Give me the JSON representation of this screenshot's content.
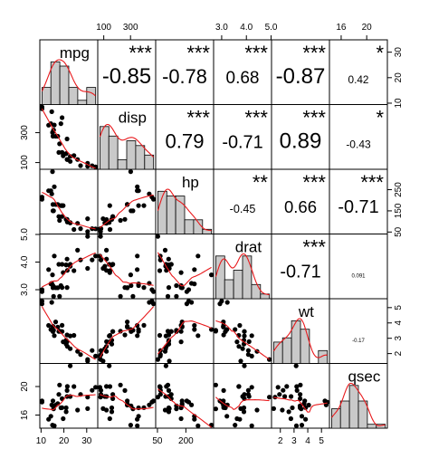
{
  "chart_data": {
    "type": "scatter-matrix",
    "title": "",
    "variables": [
      "mpg",
      "disp",
      "hp",
      "drat",
      "wt",
      "qsec"
    ],
    "axis_ranges": {
      "mpg": [
        10.4,
        33.9
      ],
      "disp": [
        71.1,
        472
      ],
      "hp": [
        52,
        335
      ],
      "drat": [
        2.76,
        4.93
      ],
      "wt": [
        1.513,
        5.424
      ],
      "qsec": [
        14.5,
        22.9
      ]
    },
    "axis_ticks": {
      "top": [
        {
          "var": "disp",
          "ticks": [
            "100",
            "300"
          ]
        },
        {
          "var": "drat",
          "ticks": [
            "3.0",
            "4.0",
            "5.0"
          ]
        },
        {
          "var": "qsec",
          "ticks": [
            "16",
            "20"
          ]
        }
      ],
      "bottom": [
        {
          "var": "mpg",
          "ticks": [
            "10",
            "20",
            "30"
          ]
        },
        {
          "var": "hp",
          "ticks": [
            "50",
            "200"
          ]
        },
        {
          "var": "wt",
          "ticks": [
            "2",
            "3",
            "4",
            "5"
          ]
        }
      ],
      "left": [
        {
          "var": "disp",
          "ticks": [
            "100",
            "300"
          ]
        },
        {
          "var": "drat",
          "ticks": [
            "3.0",
            "4.0",
            "5.0"
          ]
        },
        {
          "var": "qsec",
          "ticks": [
            "16",
            "20"
          ]
        }
      ],
      "right": [
        {
          "var": "mpg",
          "ticks": [
            "10",
            "20",
            "30"
          ]
        },
        {
          "var": "hp",
          "ticks": [
            "50",
            "150",
            "250"
          ]
        },
        {
          "var": "wt",
          "ticks": [
            "2",
            "3",
            "4",
            "5"
          ]
        }
      ]
    },
    "correlations": [
      {
        "row": 0,
        "col": 1,
        "value": "-0.85",
        "stars": "***"
      },
      {
        "row": 0,
        "col": 2,
        "value": "-0.78",
        "stars": "***"
      },
      {
        "row": 0,
        "col": 3,
        "value": "0.68",
        "stars": "***"
      },
      {
        "row": 0,
        "col": 4,
        "value": "-0.87",
        "stars": "***"
      },
      {
        "row": 0,
        "col": 5,
        "value": "0.42",
        "stars": "*"
      },
      {
        "row": 1,
        "col": 2,
        "value": "0.79",
        "stars": "***"
      },
      {
        "row": 1,
        "col": 3,
        "value": "-0.71",
        "stars": "***"
      },
      {
        "row": 1,
        "col": 4,
        "value": "0.89",
        "stars": "***"
      },
      {
        "row": 1,
        "col": 5,
        "value": "-0.43",
        "stars": "*"
      },
      {
        "row": 2,
        "col": 3,
        "value": "-0.45",
        "stars": "**"
      },
      {
        "row": 2,
        "col": 4,
        "value": "0.66",
        "stars": "***"
      },
      {
        "row": 2,
        "col": 5,
        "value": "-0.71",
        "stars": "***"
      },
      {
        "row": 3,
        "col": 4,
        "value": "-0.71",
        "stars": "***"
      },
      {
        "row": 3,
        "col": 5,
        "value": "0.091",
        "stars": ""
      },
      {
        "row": 4,
        "col": 5,
        "value": "-0.17",
        "stars": ""
      }
    ],
    "observations": {
      "mpg": [
        21,
        21,
        22.8,
        21.4,
        18.7,
        18.1,
        14.3,
        24.4,
        22.8,
        19.2,
        17.8,
        16.4,
        17.3,
        15.2,
        10.4,
        10.4,
        14.7,
        32.4,
        30.4,
        33.9,
        21.5,
        15.5,
        15.2,
        13.3,
        19.2,
        27.3,
        26,
        30.4,
        15.8,
        19.7,
        15,
        21.4
      ],
      "disp": [
        160,
        160,
        108,
        258,
        360,
        225,
        360,
        146.7,
        140.8,
        167.6,
        167.6,
        275.8,
        275.8,
        275.8,
        472,
        460,
        440,
        78.7,
        75.7,
        71.1,
        120.1,
        318,
        304,
        350,
        400,
        79,
        120.3,
        95.1,
        351,
        145,
        301,
        121
      ],
      "hp": [
        110,
        110,
        93,
        110,
        175,
        105,
        245,
        62,
        95,
        123,
        123,
        180,
        180,
        180,
        205,
        215,
        230,
        66,
        52,
        65,
        97,
        150,
        150,
        245,
        175,
        66,
        91,
        113,
        264,
        175,
        335,
        109
      ],
      "drat": [
        3.9,
        3.9,
        3.85,
        3.08,
        3.15,
        2.76,
        3.21,
        3.69,
        3.92,
        3.92,
        3.92,
        3.07,
        3.07,
        3.07,
        2.93,
        3,
        3.23,
        4.08,
        4.93,
        4.22,
        3.7,
        2.76,
        3.15,
        3.73,
        3.08,
        4.08,
        4.43,
        3.77,
        4.22,
        3.62,
        3.54,
        4.11
      ],
      "wt": [
        2.62,
        2.875,
        2.32,
        3.215,
        3.44,
        3.46,
        3.57,
        3.19,
        3.15,
        3.44,
        3.44,
        4.07,
        3.73,
        3.78,
        5.25,
        5.424,
        5.345,
        2.2,
        1.615,
        1.835,
        2.465,
        3.52,
        3.435,
        3.84,
        3.845,
        1.935,
        2.14,
        1.513,
        3.17,
        2.77,
        3.57,
        2.78
      ],
      "qsec": [
        16.46,
        17.02,
        18.61,
        19.44,
        17.02,
        20.22,
        15.84,
        20,
        22.9,
        18.3,
        18.9,
        17.4,
        17.6,
        18,
        17.98,
        17.82,
        17.42,
        19.47,
        18.52,
        19.9,
        20.01,
        16.87,
        17.3,
        15.41,
        17.05,
        18.9,
        16.7,
        16.9,
        14.5,
        15.5,
        14.6,
        18.6
      ]
    },
    "colors": {
      "text": "#000000",
      "stars": "#e8191c",
      "smooth": "#e8191c",
      "density": "#e8191c",
      "hist_fill": "#c9c9c9",
      "points": "#000000"
    }
  }
}
